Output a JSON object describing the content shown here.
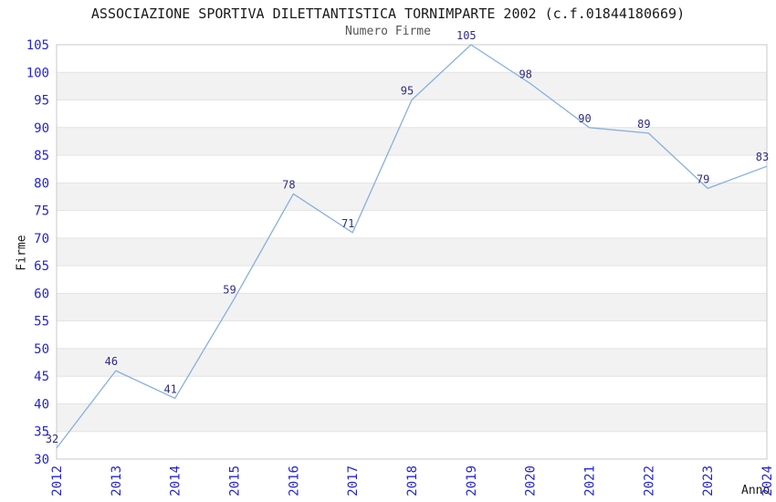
{
  "chart_data": {
    "type": "line",
    "title": "ASSOCIAZIONE SPORTIVA DILETTANTISTICA TORNIMPARTE 2002 (c.f.01844180669)",
    "subtitle": "Numero Firme",
    "xlabel": "Anno",
    "ylabel": "Firme",
    "categories": [
      "2012",
      "2013",
      "2014",
      "2015",
      "2016",
      "2017",
      "2018",
      "2019",
      "2020",
      "2021",
      "2022",
      "2023",
      "2024"
    ],
    "values": [
      32,
      46,
      41,
      59,
      78,
      71,
      95,
      105,
      98,
      90,
      89,
      79,
      83
    ],
    "ylim": [
      30,
      105
    ],
    "ytick_step": 5,
    "xtick_rotation_deg": 90,
    "grid": "horizontal-bands-alternating",
    "legend": "none",
    "data_labels_visible": true,
    "colors": {
      "line": "#87afe0",
      "tick_label": "#2424cf",
      "data_label": "#2c2c85",
      "band_gray": "#f2f2f2",
      "band_white": "#ffffff",
      "gridline": "#e3e3e3",
      "plot_border": "#c9c9c9",
      "title": "#1a1a1a",
      "subtitle": "#555555",
      "axis_title": "#1a1a1a",
      "background": "#ffffff"
    }
  }
}
